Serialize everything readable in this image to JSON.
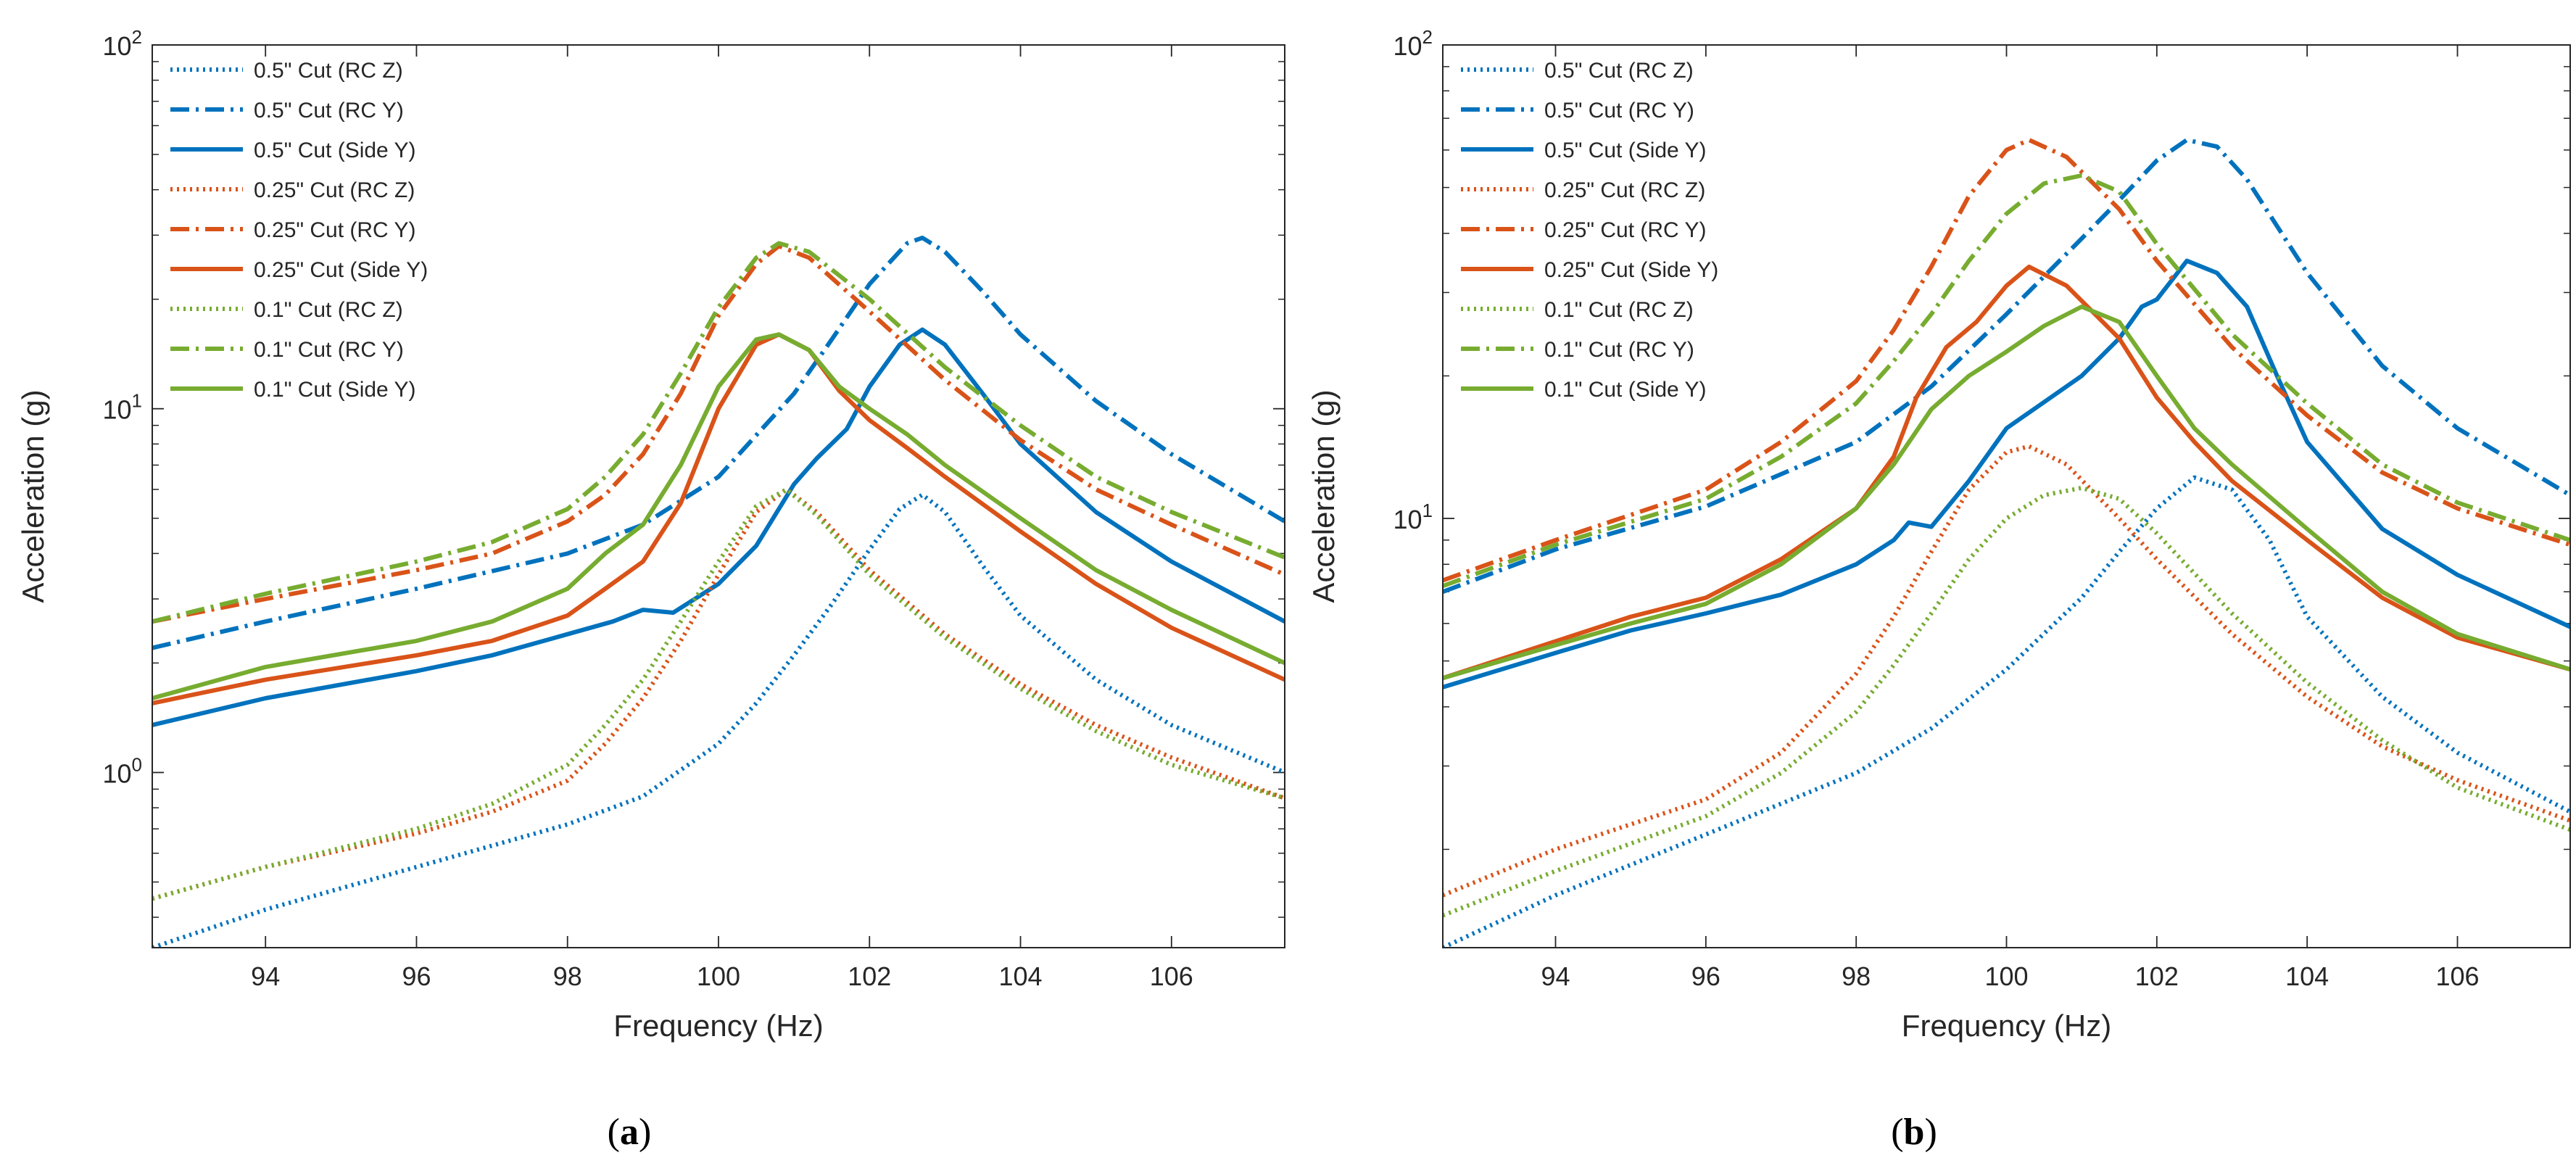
{
  "figure": {
    "captions": [
      "a",
      "b"
    ]
  },
  "colors": {
    "blue": "#0072BD",
    "orange": "#D95319",
    "green": "#77AC30"
  },
  "chart_data": [
    {
      "type": "line",
      "panel": "a",
      "xlabel": "Frequency (Hz)",
      "ylabel": "Acceleration (g)",
      "xlim": [
        92.5,
        107.5
      ],
      "ylim": [
        0.33,
        100
      ],
      "yscale": "log",
      "xticks": [
        94,
        96,
        98,
        100,
        102,
        104,
        106
      ],
      "yticks": [
        1,
        10,
        100
      ],
      "yticklabels": [
        "10^0",
        "10^1",
        "10^2"
      ],
      "legend_position": "top-left",
      "series": [
        {
          "name": "0.5\" Cut (RC Z)",
          "color": "blue",
          "style": "dotted",
          "x": [
            92.5,
            94,
            96,
            98,
            99,
            100,
            100.5,
            101,
            101.5,
            102,
            102.4,
            102.7,
            103,
            103.5,
            104,
            105,
            106,
            107.5
          ],
          "y": [
            0.33,
            0.42,
            0.55,
            0.72,
            0.86,
            1.2,
            1.55,
            2.1,
            2.9,
            4.1,
            5.3,
            5.8,
            5.2,
            3.7,
            2.7,
            1.8,
            1.35,
            1.0
          ]
        },
        {
          "name": "0.5\" Cut (RC Y)",
          "color": "blue",
          "style": "dashdot",
          "x": [
            92.5,
            94,
            96,
            98,
            99,
            100,
            101,
            101.5,
            102,
            102.5,
            102.7,
            103,
            103.5,
            104,
            105,
            106,
            107.5
          ],
          "y": [
            2.2,
            2.6,
            3.2,
            4.0,
            4.8,
            6.5,
            11,
            15.5,
            22,
            28.5,
            29.5,
            27,
            21,
            16,
            10.5,
            7.5,
            4.9
          ]
        },
        {
          "name": "0.5\" Cut (Side Y)",
          "color": "blue",
          "style": "solid",
          "x": [
            92.5,
            94,
            96,
            97,
            98,
            98.6,
            99,
            99.4,
            100,
            100.5,
            101,
            101.3,
            101.7,
            102,
            102.4,
            102.7,
            103,
            103.5,
            104,
            105,
            106,
            107.5
          ],
          "y": [
            1.35,
            1.6,
            1.9,
            2.1,
            2.4,
            2.6,
            2.8,
            2.75,
            3.3,
            4.2,
            6.2,
            7.3,
            8.8,
            11.5,
            15,
            16.5,
            15,
            11,
            8,
            5.2,
            3.8,
            2.6
          ]
        },
        {
          "name": "0.25\" Cut (RC Z)",
          "color": "orange",
          "style": "dotted",
          "x": [
            92.5,
            94,
            96,
            97,
            98,
            98.5,
            99,
            99.5,
            100,
            100.5,
            100.9,
            101.3,
            102,
            103,
            104,
            105,
            106,
            107.5
          ],
          "y": [
            0.45,
            0.55,
            0.68,
            0.78,
            0.95,
            1.2,
            1.6,
            2.3,
            3.5,
            5.2,
            6.0,
            5.2,
            3.6,
            2.4,
            1.75,
            1.35,
            1.1,
            0.85
          ]
        },
        {
          "name": "0.25\" Cut (RC Y)",
          "color": "orange",
          "style": "dashdot",
          "x": [
            92.5,
            94,
            96,
            97,
            98,
            98.5,
            99,
            99.5,
            100,
            100.5,
            100.8,
            101.2,
            102,
            103,
            104,
            105,
            106,
            107.5
          ],
          "y": [
            2.6,
            3.0,
            3.6,
            4.0,
            4.9,
            5.8,
            7.5,
            11,
            18,
            25,
            28,
            26,
            18.5,
            12,
            8.2,
            6.0,
            4.8,
            3.5
          ]
        },
        {
          "name": "0.25\" Cut (Side Y)",
          "color": "orange",
          "style": "solid",
          "x": [
            92.5,
            94,
            96,
            97,
            98,
            98.5,
            99,
            99.5,
            100,
            100.5,
            100.8,
            101.2,
            101.6,
            102,
            102.5,
            103,
            104,
            105,
            106,
            107.5
          ],
          "y": [
            1.55,
            1.8,
            2.1,
            2.3,
            2.7,
            3.2,
            3.8,
            5.5,
            10,
            15,
            16,
            14.5,
            11.2,
            9.3,
            7.8,
            6.5,
            4.6,
            3.3,
            2.5,
            1.8
          ]
        },
        {
          "name": "0.1\" Cut (RC Z)",
          "color": "green",
          "style": "dotted",
          "x": [
            92.5,
            94,
            96,
            97,
            98,
            98.5,
            99,
            99.5,
            100,
            100.5,
            100.9,
            101.3,
            102,
            103,
            104,
            105,
            106,
            107.5
          ],
          "y": [
            0.45,
            0.55,
            0.7,
            0.82,
            1.05,
            1.35,
            1.8,
            2.6,
            3.8,
            5.4,
            6.0,
            5.1,
            3.5,
            2.35,
            1.7,
            1.3,
            1.05,
            0.85
          ]
        },
        {
          "name": "0.1\" Cut (RC Y)",
          "color": "green",
          "style": "dashdot",
          "x": [
            92.5,
            94,
            96,
            97,
            98,
            98.5,
            99,
            99.5,
            100,
            100.5,
            100.8,
            101.2,
            102,
            103,
            104,
            105,
            106,
            107.5
          ],
          "y": [
            2.6,
            3.1,
            3.8,
            4.3,
            5.3,
            6.5,
            8.5,
            12.5,
            19,
            26,
            28.5,
            27,
            20,
            13,
            9.0,
            6.5,
            5.2,
            3.9
          ]
        },
        {
          "name": "0.1\" Cut (Side Y)",
          "color": "green",
          "style": "solid",
          "x": [
            92.5,
            94,
            96,
            97,
            98,
            98.5,
            99,
            99.5,
            100,
            100.5,
            100.8,
            101.2,
            101.6,
            102,
            102.5,
            103,
            104,
            105,
            106,
            107.5
          ],
          "y": [
            1.6,
            1.95,
            2.3,
            2.6,
            3.2,
            4.0,
            4.8,
            7.0,
            11.5,
            15.5,
            16,
            14.5,
            11.5,
            10,
            8.5,
            7.0,
            5.0,
            3.6,
            2.8,
            2.0
          ]
        }
      ]
    },
    {
      "type": "line",
      "panel": "b",
      "xlabel": "Frequency (Hz)",
      "ylabel": "Acceleration (g)",
      "xlim": [
        92.5,
        107.5
      ],
      "ylim": [
        1.24,
        100
      ],
      "yscale": "log",
      "xticks": [
        94,
        96,
        98,
        100,
        102,
        104,
        106
      ],
      "yticks": [
        10,
        100
      ],
      "yticklabels": [
        "10^1",
        "10^2"
      ],
      "legend_position": "top-left",
      "series": [
        {
          "name": "0.5\" Cut (RC Z)",
          "color": "blue",
          "style": "dotted",
          "x": [
            92.5,
            94,
            96,
            98,
            99,
            100,
            101,
            101.5,
            102,
            102.5,
            103,
            103.5,
            104,
            105,
            106,
            107.5
          ],
          "y": [
            1.24,
            1.6,
            2.15,
            2.9,
            3.6,
            4.8,
            6.8,
            8.5,
            10.5,
            12.2,
            11.5,
            9.0,
            6.2,
            4.2,
            3.2,
            2.4
          ]
        },
        {
          "name": "0.5\" Cut (RC Y)",
          "color": "blue",
          "style": "dashdot",
          "x": [
            92.5,
            94,
            96,
            98,
            99,
            100,
            101,
            101.5,
            102,
            102.4,
            102.8,
            103.2,
            104,
            105,
            106,
            107.5
          ],
          "y": [
            7.0,
            8.6,
            10.6,
            14.5,
            19,
            27,
            39,
            47,
            57,
            63,
            61,
            52,
            33,
            21,
            15.5,
            11.2
          ]
        },
        {
          "name": "0.5\" Cut (Side Y)",
          "color": "blue",
          "style": "solid",
          "x": [
            92.5,
            94,
            95,
            96,
            97,
            98,
            98.5,
            98.7,
            99,
            99.5,
            100,
            101,
            101.5,
            101.8,
            102,
            102.4,
            102.8,
            103.2,
            103.6,
            104,
            105,
            106,
            107.5
          ],
          "y": [
            4.4,
            5.2,
            5.8,
            6.3,
            6.9,
            8.0,
            9.0,
            9.8,
            9.6,
            12,
            15.5,
            20,
            24,
            28,
            29,
            35,
            33,
            28,
            20,
            14.5,
            9.5,
            7.6,
            5.9
          ]
        },
        {
          "name": "0.25\" Cut (RC Z)",
          "color": "orange",
          "style": "dotted",
          "x": [
            92.5,
            94,
            96,
            97,
            98,
            98.5,
            99,
            99.5,
            100,
            100.3,
            100.8,
            101.5,
            102,
            103,
            104,
            105,
            106,
            107.5
          ],
          "y": [
            1.6,
            2.0,
            2.55,
            3.2,
            4.7,
            6.2,
            8.5,
            11.5,
            13.8,
            14.2,
            13,
            10,
            8.2,
            5.7,
            4.2,
            3.3,
            2.8,
            2.3
          ]
        },
        {
          "name": "0.25\" Cut (RC Y)",
          "color": "orange",
          "style": "dashdot",
          "x": [
            92.5,
            94,
            96,
            97,
            98,
            98.5,
            99,
            99.5,
            100,
            100.3,
            100.8,
            101.5,
            102,
            103,
            104,
            105,
            106,
            107.5
          ],
          "y": [
            7.4,
            9.0,
            11.5,
            14.5,
            19.5,
            25,
            34,
            48,
            60,
            63,
            58,
            45,
            35,
            23,
            16.5,
            12.5,
            10.5,
            8.8
          ]
        },
        {
          "name": "0.25\" Cut (Side Y)",
          "color": "orange",
          "style": "solid",
          "x": [
            92.5,
            94,
            95,
            96,
            97,
            98,
            98.5,
            98.8,
            99.2,
            99.6,
            100,
            100.3,
            100.8,
            101.5,
            102,
            102.5,
            103,
            104,
            105,
            106,
            107.5
          ],
          "y": [
            4.6,
            5.5,
            6.2,
            6.8,
            8.2,
            10.5,
            13.5,
            18,
            23,
            26,
            31,
            34,
            31,
            24,
            18,
            14.5,
            12,
            9.0,
            6.8,
            5.6,
            4.8
          ]
        },
        {
          "name": "0.1\" Cut (RC Z)",
          "color": "green",
          "style": "dotted",
          "x": [
            92.5,
            94,
            96,
            97,
            98,
            98.5,
            99,
            99.5,
            100,
            100.5,
            101,
            101.5,
            102,
            103,
            104,
            105,
            106,
            107.5
          ],
          "y": [
            1.45,
            1.8,
            2.35,
            2.9,
            3.9,
            4.9,
            6.3,
            8.2,
            10,
            11.2,
            11.6,
            11,
            9.3,
            6.3,
            4.5,
            3.4,
            2.7,
            2.2
          ]
        },
        {
          "name": "0.1\" Cut (RC Y)",
          "color": "green",
          "style": "dashdot",
          "x": [
            92.5,
            94,
            96,
            97,
            98,
            98.5,
            99,
            99.5,
            100,
            100.5,
            101,
            101.5,
            102,
            103,
            104,
            105,
            106,
            107.5
          ],
          "y": [
            7.2,
            8.8,
            11,
            13.5,
            17.5,
            21.5,
            27,
            35,
            44,
            51,
            53,
            49,
            38,
            24.5,
            17.5,
            13,
            10.8,
            9.0
          ]
        },
        {
          "name": "0.1\" Cut (Side Y)",
          "color": "green",
          "style": "solid",
          "x": [
            92.5,
            94,
            95,
            96,
            97,
            98,
            98.5,
            99,
            99.5,
            100,
            100.5,
            101,
            101.5,
            102,
            102.5,
            103,
            104,
            105,
            106,
            107.5
          ],
          "y": [
            4.6,
            5.4,
            6.0,
            6.6,
            8.0,
            10.5,
            13,
            17,
            20,
            22.5,
            25.5,
            28,
            26,
            20,
            15.5,
            13,
            9.5,
            7.0,
            5.7,
            4.8
          ]
        }
      ]
    }
  ]
}
